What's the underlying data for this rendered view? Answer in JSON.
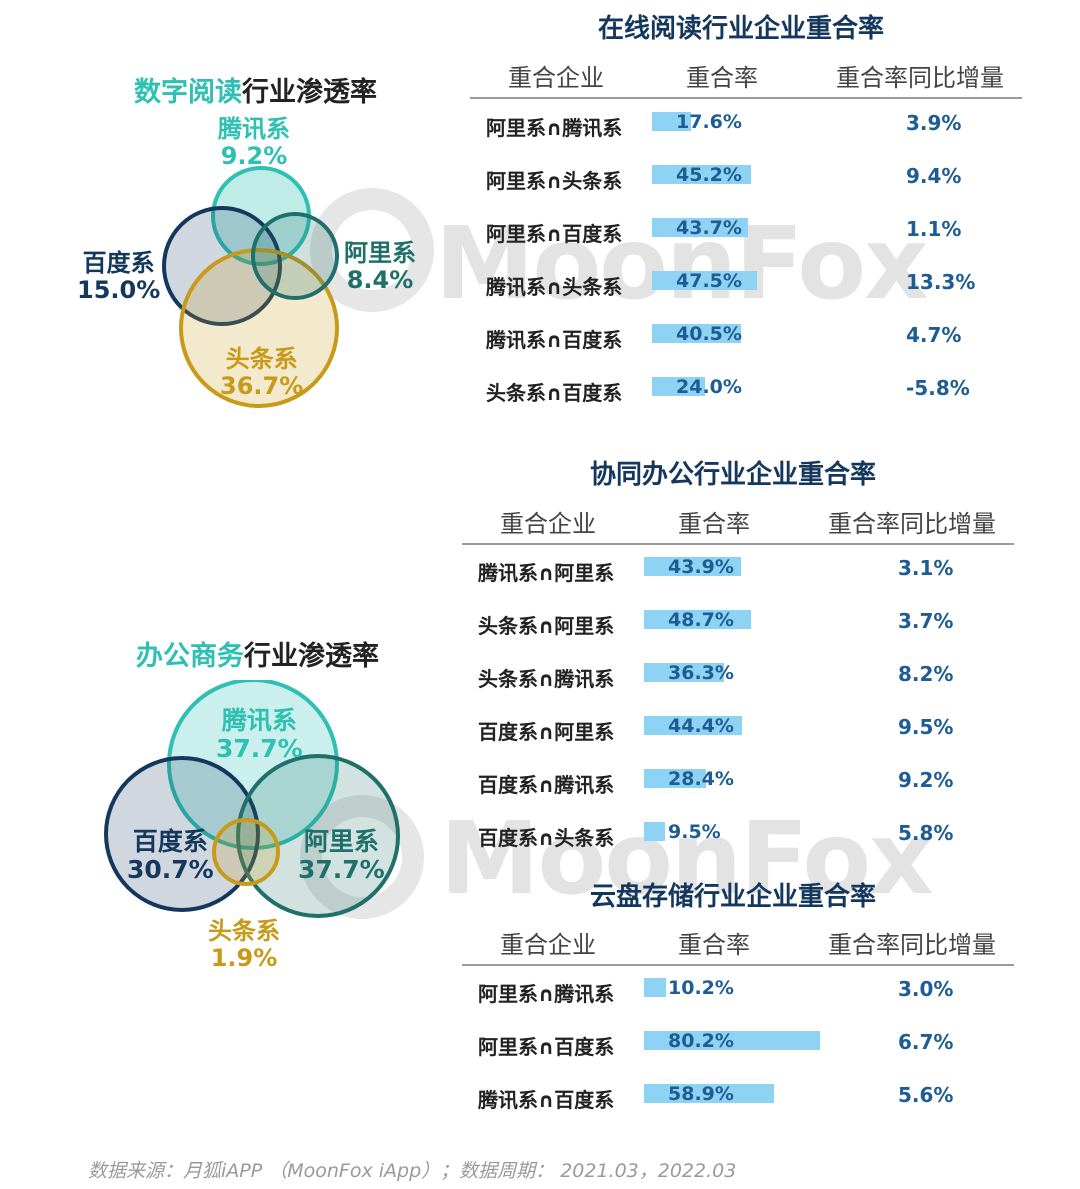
{
  "venns": [
    {
      "title_highlight": "数字阅读",
      "title_rest": "行业渗透率",
      "sets": [
        {
          "name": "腾讯系",
          "value": "9.2%",
          "color": "#2ec0b2"
        },
        {
          "name": "阿里系",
          "value": "8.4%",
          "color": "#1f6f6a"
        },
        {
          "name": "百度系",
          "value": "15.0%",
          "color": "#14375e"
        },
        {
          "name": "头条系",
          "value": "36.7%",
          "color": "#c79a1a"
        }
      ]
    },
    {
      "title_highlight": "办公商务",
      "title_rest": "行业渗透率",
      "sets": [
        {
          "name": "腾讯系",
          "value": "37.7%",
          "color": "#2ec0b2"
        },
        {
          "name": "阿里系",
          "value": "37.7%",
          "color": "#1f6f6a"
        },
        {
          "name": "百度系",
          "value": "30.7%",
          "color": "#14375e"
        },
        {
          "name": "头条系",
          "value": "1.9%",
          "color": "#c79a1a"
        }
      ]
    }
  ],
  "tables": [
    {
      "title": "在线阅读行业企业重合率",
      "headers": [
        "重合企业",
        "重合率",
        "重合率同比增量"
      ],
      "rows": [
        {
          "pair": "阿里系∩腾讯系",
          "rate": 17.6,
          "rate_label": "17.6%",
          "delta": "3.9%"
        },
        {
          "pair": "阿里系∩头条系",
          "rate": 45.2,
          "rate_label": "45.2%",
          "delta": "9.4%"
        },
        {
          "pair": "阿里系∩百度系",
          "rate": 43.7,
          "rate_label": "43.7%",
          "delta": "1.1%"
        },
        {
          "pair": "腾讯系∩头条系",
          "rate": 47.5,
          "rate_label": "47.5%",
          "delta": "13.3%"
        },
        {
          "pair": "腾讯系∩百度系",
          "rate": 40.5,
          "rate_label": "40.5%",
          "delta": "4.7%"
        },
        {
          "pair": "头条系∩百度系",
          "rate": 24.0,
          "rate_label": "24.0%",
          "delta": "-5.8%"
        }
      ]
    },
    {
      "title": "协同办公行业企业重合率",
      "headers": [
        "重合企业",
        "重合率",
        "重合率同比增量"
      ],
      "rows": [
        {
          "pair": "腾讯系∩阿里系",
          "rate": 43.9,
          "rate_label": "43.9%",
          "delta": "3.1%"
        },
        {
          "pair": "头条系∩阿里系",
          "rate": 48.7,
          "rate_label": "48.7%",
          "delta": "3.7%"
        },
        {
          "pair": "头条系∩腾讯系",
          "rate": 36.3,
          "rate_label": "36.3%",
          "delta": "8.2%"
        },
        {
          "pair": "百度系∩阿里系",
          "rate": 44.4,
          "rate_label": "44.4%",
          "delta": "9.5%"
        },
        {
          "pair": "百度系∩腾讯系",
          "rate": 28.4,
          "rate_label": "28.4%",
          "delta": "9.2%"
        },
        {
          "pair": "百度系∩头条系",
          "rate": 9.5,
          "rate_label": "9.5%",
          "delta": "5.8%"
        }
      ]
    },
    {
      "title": "云盘存储行业企业重合率",
      "headers": [
        "重合企业",
        "重合率",
        "重合率同比增量"
      ],
      "rows": [
        {
          "pair": "阿里系∩腾讯系",
          "rate": 10.2,
          "rate_label": "10.2%",
          "delta": "3.0%"
        },
        {
          "pair": "阿里系∩百度系",
          "rate": 80.2,
          "rate_label": "80.2%",
          "delta": "6.7%"
        },
        {
          "pair": "腾讯系∩百度系",
          "rate": 58.9,
          "rate_label": "58.9%",
          "delta": "5.6%"
        }
      ]
    }
  ],
  "watermark": "MoonFox",
  "source": "数据来源：月狐iAPP （MoonFox iApp）；数据周期： 2021.03，2022.03",
  "chart_data": [
    {
      "type": "venn",
      "title": "数字阅读行业渗透率",
      "sets": [
        {
          "name": "腾讯系",
          "value": 9.2
        },
        {
          "name": "阿里系",
          "value": 8.4
        },
        {
          "name": "百度系",
          "value": 15.0
        },
        {
          "name": "头条系",
          "value": 36.7
        }
      ]
    },
    {
      "type": "venn",
      "title": "办公商务行业渗透率",
      "sets": [
        {
          "name": "腾讯系",
          "value": 37.7
        },
        {
          "name": "阿里系",
          "value": 37.7
        },
        {
          "name": "百度系",
          "value": 30.7
        },
        {
          "name": "头条系",
          "value": 1.9
        }
      ]
    },
    {
      "type": "bar",
      "title": "在线阅读行业企业重合率",
      "categories": [
        "阿里系∩腾讯系",
        "阿里系∩头条系",
        "阿里系∩百度系",
        "腾讯系∩头条系",
        "腾讯系∩百度系",
        "头条系∩百度系"
      ],
      "series": [
        {
          "name": "重合率",
          "values": [
            17.6,
            45.2,
            43.7,
            47.5,
            40.5,
            24.0
          ]
        },
        {
          "name": "重合率同比增量",
          "values": [
            3.9,
            9.4,
            1.1,
            13.3,
            4.7,
            -5.8
          ]
        }
      ]
    },
    {
      "type": "bar",
      "title": "协同办公行业企业重合率",
      "categories": [
        "腾讯系∩阿里系",
        "头条系∩阿里系",
        "头条系∩腾讯系",
        "百度系∩阿里系",
        "百度系∩腾讯系",
        "百度系∩头条系"
      ],
      "series": [
        {
          "name": "重合率",
          "values": [
            43.9,
            48.7,
            36.3,
            44.4,
            28.4,
            9.5
          ]
        },
        {
          "name": "重合率同比增量",
          "values": [
            3.1,
            3.7,
            8.2,
            9.5,
            9.2,
            5.8
          ]
        }
      ]
    },
    {
      "type": "bar",
      "title": "云盘存储行业企业重合率",
      "categories": [
        "阿里系∩腾讯系",
        "阿里系∩百度系",
        "腾讯系∩百度系"
      ],
      "series": [
        {
          "name": "重合率",
          "values": [
            10.2,
            80.2,
            58.9
          ]
        },
        {
          "name": "重合率同比增量",
          "values": [
            3.0,
            6.7,
            5.6
          ]
        }
      ]
    }
  ]
}
